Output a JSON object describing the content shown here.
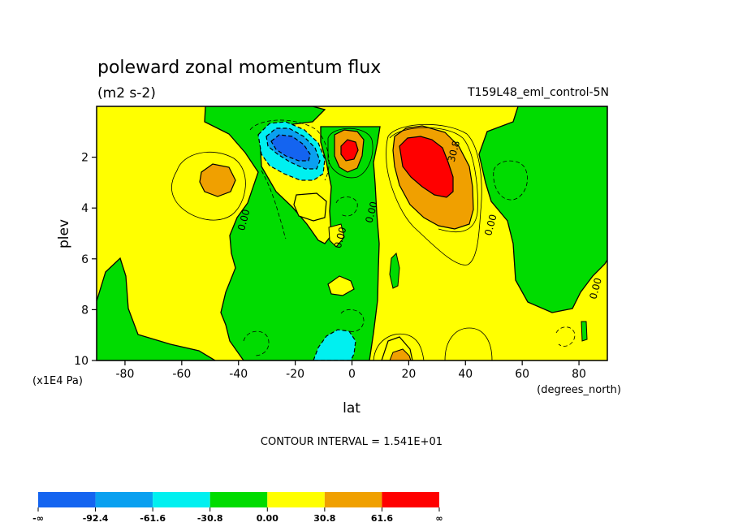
{
  "chart_data": {
    "type": "heatmap",
    "title": "poleward zonal momentum flux",
    "units": "(m2 s-2)",
    "dataset": "T159L48_eml_control-5N",
    "xlabel": "lat",
    "ylabel": "plev",
    "x_units": "(degrees_north)",
    "y_units": "(x1E4 Pa)",
    "xlim": [
      -90,
      90
    ],
    "ylim": [
      10,
      0
    ],
    "x_ticks": [
      -80,
      -60,
      -40,
      -20,
      0,
      20,
      40,
      60,
      80
    ],
    "y_ticks": [
      2,
      4,
      6,
      8,
      10
    ],
    "contour_interval_label": "CONTOUR INTERVAL = 1.541E+01",
    "contour_labels": [
      {
        "text": "0.00",
        "x": -37,
        "y": 4.5
      },
      {
        "text": "0.00",
        "x": 8,
        "y": 4.2
      },
      {
        "text": "0.00",
        "x": -3,
        "y": 5.2
      },
      {
        "text": "0.00",
        "x": 50,
        "y": 4.7
      },
      {
        "text": "0.00",
        "x": 87,
        "y": 7.2
      },
      {
        "text": "30.8",
        "x": 37,
        "y": 1.8
      }
    ],
    "colorbar": {
      "labels": [
        "-∞",
        "-92.4",
        "-61.6",
        "-30.8",
        "0.00",
        "30.8",
        "61.6",
        "∞"
      ],
      "colors": [
        "#1464f0",
        "#0aa0f0",
        "#00f0f0",
        "#00dc00",
        "#ffff00",
        "#f0a000",
        "#ff0000"
      ]
    },
    "features": [
      {
        "kind": "positive_max",
        "x": 28,
        "y": 2.4,
        "level": ">61.6"
      },
      {
        "kind": "positive_max",
        "x": 0,
        "y": 1.8,
        "level": ">61.6"
      },
      {
        "kind": "positive",
        "x": -50,
        "y": 2.8,
        "level": "30.8-61.6"
      },
      {
        "kind": "negative_min",
        "x": -21,
        "y": 1.7,
        "level": "<-92.4"
      },
      {
        "kind": "negative",
        "x": -5,
        "y": 9.6,
        "level": "-61.6 to -30.8"
      },
      {
        "kind": "positive",
        "x": 16,
        "y": 9.9,
        "level": "30.8-61.6"
      }
    ]
  }
}
